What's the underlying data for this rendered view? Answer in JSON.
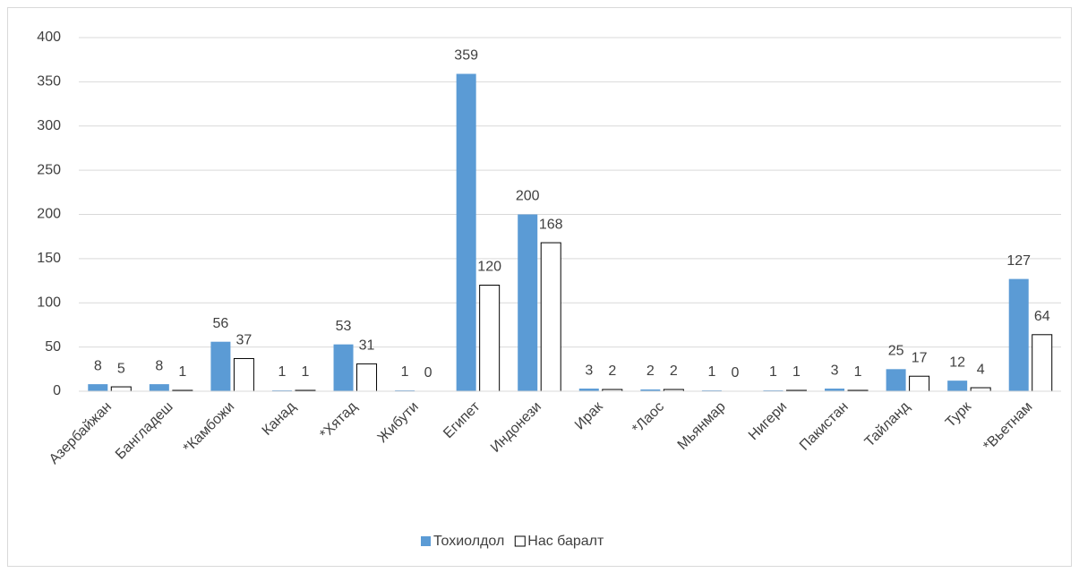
{
  "chart_data": {
    "type": "bar",
    "categories": [
      "Азербайжан",
      "Бангладеш",
      "*Камбожи",
      "Канад",
      "*Хятад",
      "Жибути",
      "Египет",
      "Индонези",
      "Ирак",
      "*Лаос",
      "Мьянмар",
      "Нигери",
      "Пакистан",
      "Тайланд",
      "Турк",
      "*Вьетнам"
    ],
    "series": [
      {
        "name": "Тохиолдол",
        "color": "#5b9bd5",
        "values": [
          8,
          8,
          56,
          1,
          53,
          1,
          359,
          200,
          3,
          2,
          1,
          1,
          3,
          25,
          12,
          127
        ]
      },
      {
        "name": "Нас баралт",
        "color": "#ffffff",
        "values": [
          5,
          1,
          37,
          1,
          31,
          0,
          120,
          168,
          2,
          2,
          0,
          1,
          1,
          17,
          4,
          64
        ]
      }
    ],
    "ylim": [
      0,
      400
    ],
    "yticks": [
      0,
      50,
      100,
      150,
      200,
      250,
      300,
      350,
      400
    ],
    "grid": true,
    "legend": "bottom"
  }
}
